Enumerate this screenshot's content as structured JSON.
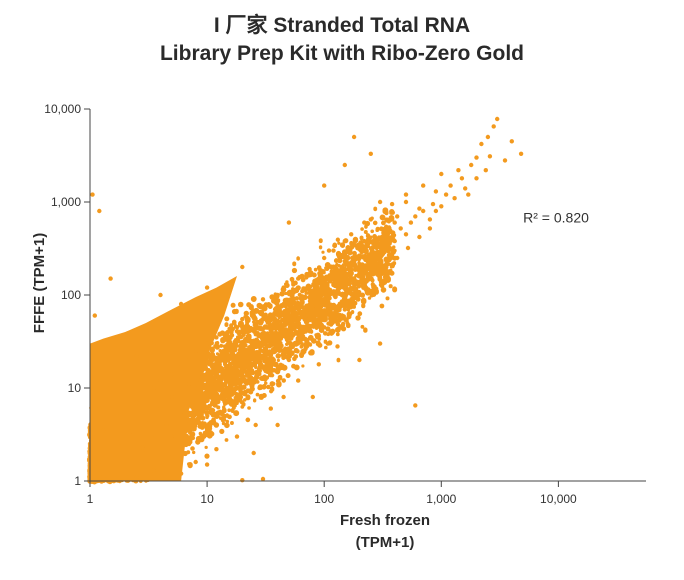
{
  "chart_data": {
    "type": "scatter",
    "title": [
      "I 厂家 Stranded Total RNA",
      "Library Prep Kit with Ribo-Zero Gold"
    ],
    "xlabel": [
      "Fresh frozen",
      "(TPM+1)"
    ],
    "ylabel": "FFFE (TPM+1)",
    "x_scale": "log",
    "y_scale": "log",
    "xlim": [
      1,
      56000
    ],
    "ylim": [
      1,
      10000
    ],
    "x_ticks": [
      {
        "value": 1,
        "label": "1"
      },
      {
        "value": 10,
        "label": "10"
      },
      {
        "value": 100,
        "label": "100"
      },
      {
        "value": 1000,
        "label": "1,000"
      },
      {
        "value": 10000,
        "label": "10,000"
      }
    ],
    "y_ticks": [
      {
        "value": 1,
        "label": "1"
      },
      {
        "value": 10,
        "label": "10"
      },
      {
        "value": 100,
        "label": "100"
      },
      {
        "value": 1000,
        "label": "1,000"
      },
      {
        "value": 10000,
        "label": "10,000"
      }
    ],
    "annotation": {
      "text": "R² = 0.820",
      "x": 5000,
      "y": 600
    },
    "grid": false,
    "legend": "none",
    "point_color": "#F39A1E",
    "series": [
      {
        "points": [
          [
            3,
            2
          ],
          [
            5,
            3
          ],
          [
            8,
            6
          ],
          [
            12,
            10
          ],
          [
            20,
            15
          ],
          [
            30,
            25
          ],
          [
            50,
            40
          ],
          [
            70,
            60
          ],
          [
            100,
            90
          ],
          [
            150,
            120
          ],
          [
            200,
            180
          ],
          [
            300,
            250
          ],
          [
            400,
            380
          ],
          [
            500,
            450
          ],
          [
            600,
            700
          ],
          [
            800,
            650
          ],
          [
            1000,
            900
          ],
          [
            1200,
            1500
          ],
          [
            1500,
            1800
          ],
          [
            2000,
            3000
          ],
          [
            2500,
            5000
          ],
          [
            2800,
            6500
          ],
          [
            3000,
            7800
          ],
          [
            4800,
            3300
          ],
          [
            2600,
            3100
          ],
          [
            1700,
            1200
          ],
          [
            900,
            800
          ],
          [
            700,
            1500
          ],
          [
            400,
            600
          ],
          [
            250,
            3300
          ],
          [
            180,
            5000
          ],
          [
            150,
            2500
          ],
          [
            100,
            1500
          ],
          [
            50,
            600
          ],
          [
            20,
            200
          ],
          [
            10,
            120
          ],
          [
            6,
            80
          ],
          [
            3,
            40
          ],
          [
            1.5,
            150
          ],
          [
            1.2,
            800
          ],
          [
            1.05,
            1200
          ],
          [
            1.1,
            60
          ],
          [
            4,
            100
          ],
          [
            15,
            130
          ],
          [
            30,
            90
          ],
          [
            60,
            150
          ],
          [
            120,
            300
          ],
          [
            300,
            1000
          ],
          [
            500,
            1000
          ],
          [
            1000,
            2000
          ],
          [
            1800,
            2500
          ],
          [
            600,
            6.5
          ],
          [
            300,
            30
          ],
          [
            200,
            20
          ],
          [
            80,
            8
          ],
          [
            40,
            4
          ],
          [
            25,
            2
          ],
          [
            10,
            1.5
          ],
          [
            6,
            1.2
          ],
          [
            30,
            1.05
          ],
          [
            20,
            1.02
          ],
          [
            1.1,
            1.5
          ],
          [
            1.05,
            3
          ],
          [
            1.2,
            6
          ],
          [
            1.4,
            10
          ],
          [
            2,
            15
          ],
          [
            2.5,
            22
          ],
          [
            3.5,
            30
          ],
          [
            1.3,
            1.1
          ],
          [
            1.7,
            1.4
          ],
          [
            2.2,
            1.8
          ],
          [
            2.8,
            2.3
          ],
          [
            3.6,
            3.1
          ],
          [
            4.5,
            4
          ],
          [
            6,
            5.5
          ],
          [
            7.5,
            7
          ],
          [
            9,
            9
          ],
          [
            11,
            11
          ],
          [
            14,
            13
          ],
          [
            18,
            17
          ],
          [
            25,
            22
          ],
          [
            35,
            30
          ],
          [
            45,
            42
          ],
          [
            60,
            55
          ],
          [
            80,
            75
          ],
          [
            110,
            100
          ],
          [
            140,
            160
          ],
          [
            180,
            210
          ],
          [
            230,
            260
          ],
          [
            280,
            320
          ],
          [
            350,
            400
          ],
          [
            450,
            520
          ],
          [
            550,
            600
          ],
          [
            700,
            800
          ],
          [
            850,
            950
          ],
          [
            1100,
            1200
          ],
          [
            1300,
            1100
          ],
          [
            1600,
            1400
          ],
          [
            2000,
            1800
          ],
          [
            2400,
            2200
          ],
          [
            4000,
            4500
          ],
          [
            3500,
            2800
          ],
          [
            2200,
            4200
          ],
          [
            1400,
            2200
          ],
          [
            900,
            1300
          ],
          [
            650,
            850
          ],
          [
            420,
            700
          ],
          [
            330,
            500
          ],
          [
            220,
            380
          ],
          [
            160,
            250
          ],
          [
            120,
            200
          ],
          [
            90,
            150
          ],
          [
            65,
            110
          ],
          [
            45,
            80
          ],
          [
            30,
            55
          ],
          [
            22,
            40
          ],
          [
            16,
            28
          ],
          [
            12,
            20
          ],
          [
            9,
            15
          ],
          [
            7,
            11
          ],
          [
            5,
            8
          ],
          [
            4,
            6
          ],
          [
            3,
            4.5
          ],
          [
            2.2,
            3.4
          ],
          [
            1.8,
            2.6
          ],
          [
            1.5,
            2
          ],
          [
            1.2,
            1.6
          ],
          [
            50,
            20
          ],
          [
            70,
            30
          ],
          [
            100,
            45
          ],
          [
            150,
            70
          ],
          [
            200,
            100
          ],
          [
            260,
            130
          ],
          [
            330,
            180
          ],
          [
            420,
            250
          ],
          [
            520,
            320
          ],
          [
            650,
            420
          ],
          [
            800,
            520
          ],
          [
            40,
            15
          ],
          [
            28,
            10
          ],
          [
            20,
            7
          ],
          [
            14,
            5
          ],
          [
            10,
            3.5
          ],
          [
            7,
            2.5
          ],
          [
            5,
            1.8
          ],
          [
            3.5,
            1.3
          ],
          [
            2.5,
            1.1
          ],
          [
            60,
            12
          ],
          [
            90,
            18
          ],
          [
            130,
            28
          ],
          [
            45,
            8
          ],
          [
            35,
            6
          ],
          [
            26,
            4
          ],
          [
            18,
            3
          ],
          [
            12,
            2.2
          ],
          [
            8,
            1.6
          ],
          [
            15,
            40
          ],
          [
            10,
            30
          ],
          [
            7,
            20
          ],
          [
            5,
            14
          ],
          [
            3.5,
            10
          ],
          [
            2.5,
            7
          ],
          [
            1.8,
            5
          ],
          [
            1.3,
            3.5
          ],
          [
            25,
            60
          ],
          [
            18,
            45
          ],
          [
            12,
            35
          ],
          [
            8,
            25
          ],
          [
            6,
            18
          ],
          [
            4,
            12
          ],
          [
            40,
            100
          ],
          [
            30,
            75
          ],
          [
            20,
            55
          ],
          [
            65,
            160
          ],
          [
            45,
            120
          ],
          [
            100,
            250
          ],
          [
            75,
            190
          ],
          [
            150,
            380
          ],
          [
            110,
            300
          ],
          [
            220,
            600
          ],
          [
            170,
            450
          ],
          [
            330,
            800
          ],
          [
            250,
            650
          ],
          [
            500,
            1200
          ],
          [
            380,
            950
          ]
        ]
      }
    ]
  }
}
